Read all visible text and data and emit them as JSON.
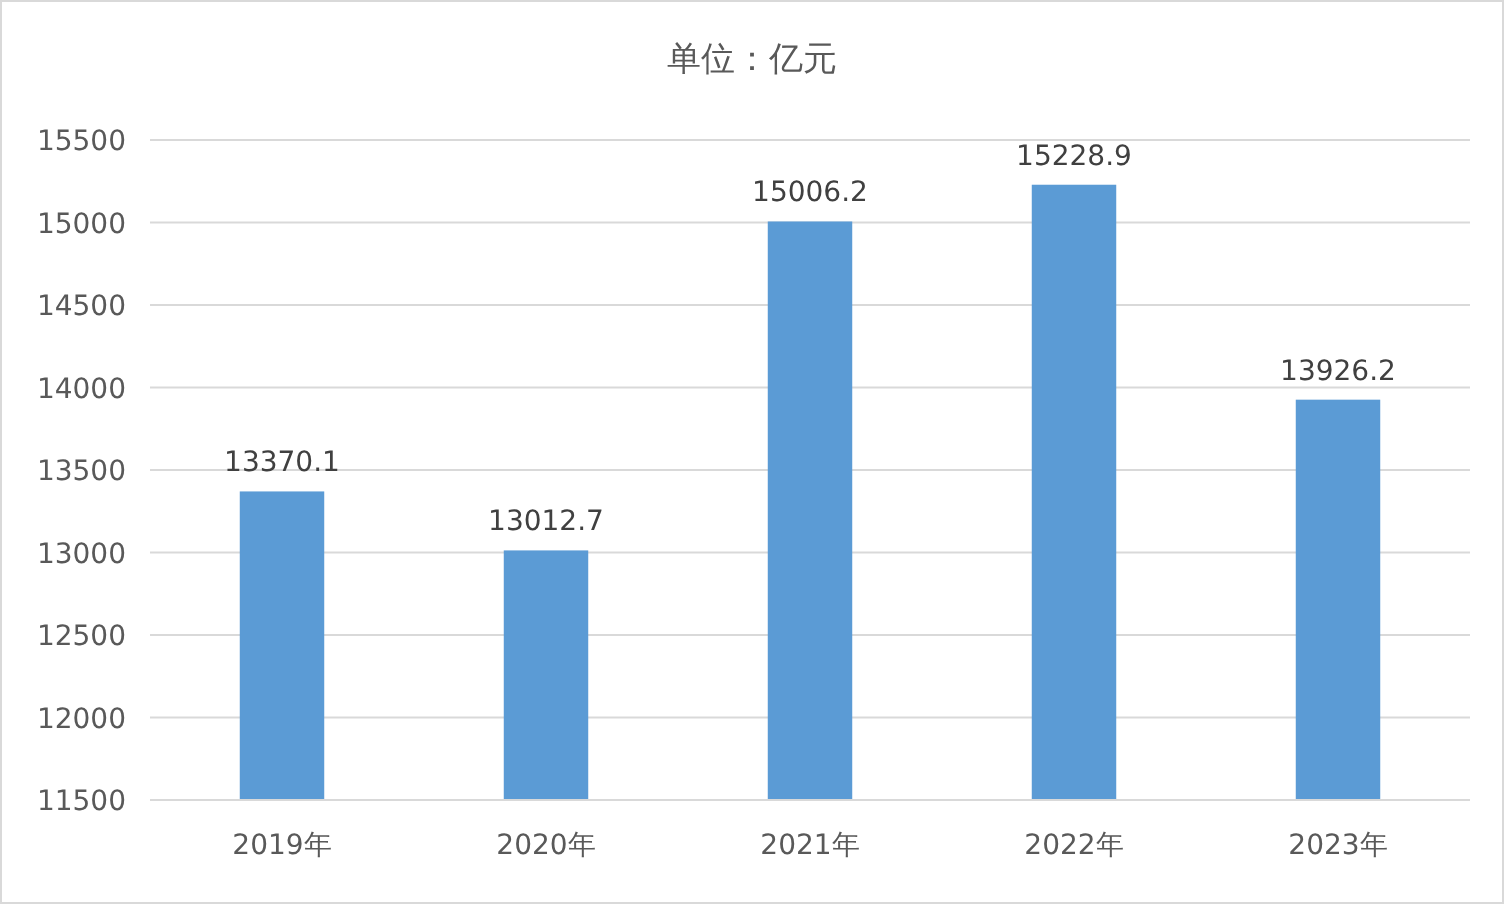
{
  "chart_data": {
    "type": "bar",
    "title": "单位：亿元",
    "categories": [
      "2019年",
      "2020年",
      "2021年",
      "2022年",
      "2023年"
    ],
    "values": [
      13370.1,
      13012.7,
      15006.2,
      15228.9,
      13926.2
    ],
    "color": "#5b9bd5",
    "ylim": [
      11500,
      15500
    ],
    "yticks": [
      11500,
      12000,
      12500,
      13000,
      13500,
      14000,
      14500,
      15000,
      15500
    ],
    "grid": "y",
    "data_labels": true
  }
}
